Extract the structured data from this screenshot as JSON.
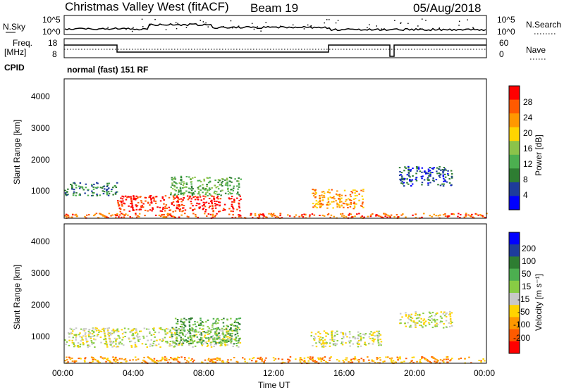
{
  "header": {
    "station": "Christmas Valley West (fitACF)",
    "beam": "Beam 19",
    "date": "05/Aug/2018"
  },
  "strips": {
    "sky_label": "N.Sky",
    "sky_ticks": [
      "10^5",
      "10^0"
    ],
    "search_label": "N.Search",
    "search_ticks": [
      "10^5",
      "10^0"
    ],
    "freq_label_1": "Freq.",
    "freq_label_2": "[MHz]",
    "freq_ticks": [
      "18",
      "8"
    ],
    "nave_label": "Nave",
    "nave_ticks": [
      "60",
      "0"
    ],
    "cpid_label": "CPID",
    "cpid_value": "normal (fast) 151 RF"
  },
  "colors": {
    "power": [
      "#0000ff",
      "#1e3c9c",
      "#2e7d32",
      "#4caf50",
      "#8bc34a",
      "#ffd400",
      "#ff9800",
      "#ff5a00",
      "#ff0000"
    ],
    "velocity": [
      "#0000ff",
      "#1e3c9c",
      "#2e7d32",
      "#4caf50",
      "#88cc44",
      "#c8c8c8",
      "#ffd400",
      "#ff9800",
      "#ff5a00",
      "#ff0000"
    ]
  },
  "chart_data": [
    {
      "type": "heatmap",
      "name": "power",
      "ylabel": "Slant Range [km]",
      "yticks": [
        "1000",
        "2000",
        "3000",
        "4000"
      ],
      "xticks": [
        "00:00",
        "04:00",
        "08:00",
        "12:00",
        "16:00",
        "20:00",
        "00:00"
      ],
      "colorbar_label": "Power [dB]",
      "colorbar_ticks": [
        "4",
        "8",
        "12",
        "16",
        "20",
        "24",
        "28"
      ],
      "scatter_regions": [
        {
          "t": [
            0.0,
            24.0
          ],
          "r": [
            200,
            350
          ],
          "level": 7
        },
        {
          "t": [
            3.0,
            10.0
          ],
          "r": [
            400,
            900
          ],
          "level": 8
        },
        {
          "t": [
            0.0,
            3.0
          ],
          "r": [
            900,
            1300
          ],
          "level": 2
        },
        {
          "t": [
            6.0,
            10.0
          ],
          "r": [
            900,
            1500
          ],
          "level": 3
        },
        {
          "t": [
            14.0,
            17.0
          ],
          "r": [
            500,
            1100
          ],
          "level": 6
        },
        {
          "t": [
            19.0,
            22.0
          ],
          "r": [
            1200,
            1800
          ],
          "level": 1
        }
      ]
    },
    {
      "type": "heatmap",
      "name": "velocity",
      "ylabel": "Slant Range [km]",
      "yticks": [
        "1000",
        "2000",
        "3000",
        "4000"
      ],
      "xticks": [
        "00:00",
        "04:00",
        "08:00",
        "12:00",
        "16:00",
        "20:00",
        "00:00"
      ],
      "xlabel": "Time UT",
      "colorbar_label": "Velocity [m s⁻¹]",
      "colorbar_ticks": [
        "200",
        "100",
        "50",
        "15",
        "-15",
        "-50",
        "-100",
        "-200"
      ],
      "scatter_regions": [
        {
          "t": [
            0.0,
            24.0
          ],
          "r": [
            200,
            400
          ],
          "level": 7
        },
        {
          "t": [
            0.0,
            10.0
          ],
          "r": [
            700,
            1300
          ],
          "level": 5
        },
        {
          "t": [
            6.0,
            10.0
          ],
          "r": [
            800,
            1600
          ],
          "level": 3
        },
        {
          "t": [
            14.0,
            18.0
          ],
          "r": [
            700,
            1200
          ],
          "level": 5
        },
        {
          "t": [
            19.0,
            22.0
          ],
          "r": [
            1300,
            1800
          ],
          "level": 5
        }
      ]
    }
  ]
}
